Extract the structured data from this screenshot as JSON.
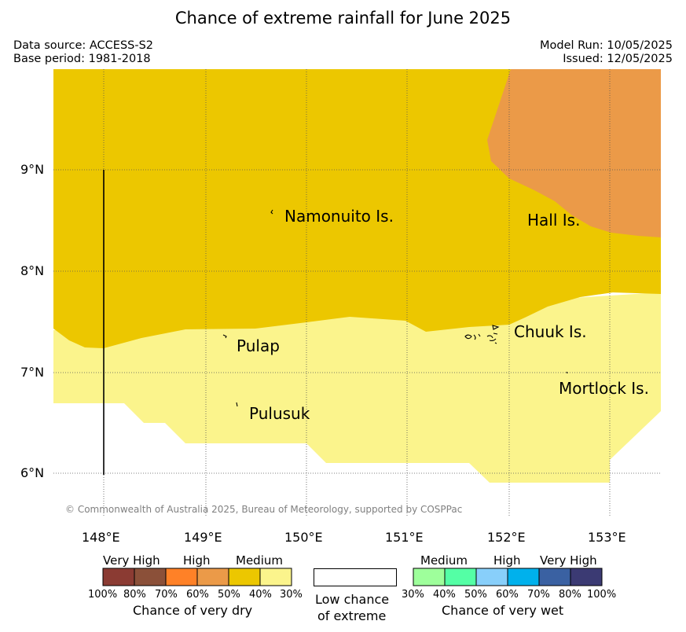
{
  "title": "Chance of extreme rainfall for June 2025",
  "header": {
    "data_source": "Data source: ACCESS-S2",
    "base_period": "Base period: 1981-2018",
    "model_run": "Model Run: 10/05/2025",
    "issued": "Issued: 12/05/2025"
  },
  "map": {
    "lon_ticks": [
      "148°E",
      "149°E",
      "150°E",
      "151°E",
      "152°E",
      "153°E"
    ],
    "lat_ticks": [
      "9°N",
      "8°N",
      "7°N",
      "6°N"
    ],
    "places": {
      "namonuito": "Namonuito Is.",
      "hall": "Hall Is.",
      "pulap": "Pulap",
      "chuuk": "Chuuk Is.",
      "mortlock": "Mortlock Is.",
      "pulusuk": "Pulusuk"
    },
    "copyright": "© Commonwealth of Australia 2025, Bureau of Meteorology, supported by COSPPac",
    "colors": {
      "dry_50_60": "#eb9a48",
      "dry_40_50": "#ecc700",
      "dry_30_40": "#fbf48c",
      "low_chance": "#ffffff"
    }
  },
  "legend": {
    "dry": {
      "categories": [
        "Very High",
        "High",
        "Medium"
      ],
      "ticks": [
        "100%",
        "80%",
        "70%",
        "60%",
        "50%",
        "40%",
        "30%"
      ],
      "colors": [
        "#8b3b33",
        "#8b5039",
        "#ff8127",
        "#eb9a48",
        "#ecc700",
        "#fbf48c"
      ],
      "caption": "Chance of very dry"
    },
    "low": {
      "caption_line1": "Low chance",
      "caption_line2": "of extreme"
    },
    "wet": {
      "categories": [
        "Medium",
        "High",
        "Very High"
      ],
      "ticks": [
        "30%",
        "40%",
        "50%",
        "60%",
        "70%",
        "80%",
        "100%"
      ],
      "colors": [
        "#9eff9b",
        "#54ffa5",
        "#88cffa",
        "#00b1ec",
        "#3a61a2",
        "#3b3a73"
      ],
      "caption": "Chance of very wet"
    }
  }
}
